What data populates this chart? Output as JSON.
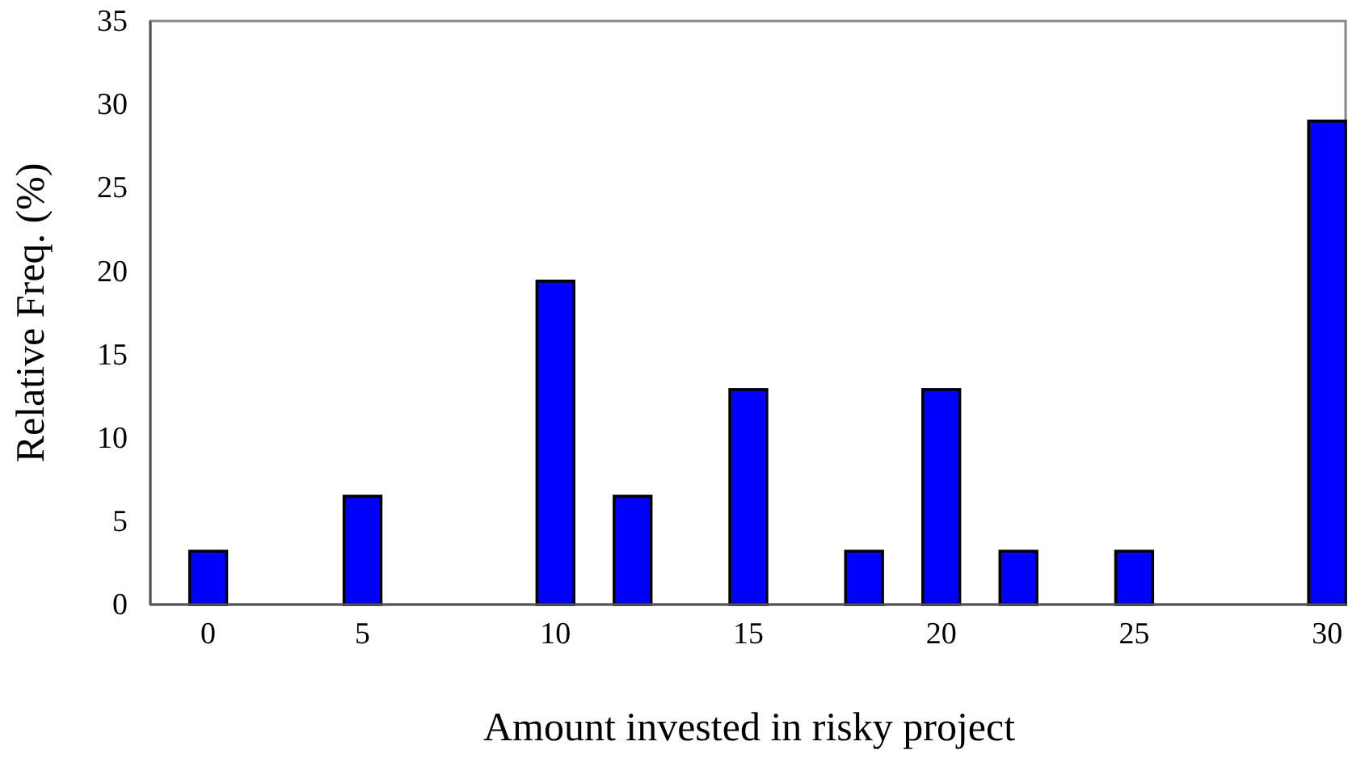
{
  "chart_data": {
    "type": "bar",
    "xlabel": "Amount invested in risky project",
    "ylabel": "Relative Freq. (%)",
    "categories": [
      "0",
      null,
      null,
      null,
      "5",
      null,
      null,
      null,
      null,
      "10",
      null,
      null,
      null,
      null,
      "15",
      null,
      null,
      null,
      null,
      "20",
      null,
      null,
      null,
      null,
      "25",
      null,
      null,
      null,
      null,
      "30"
    ],
    "values": [
      3.2,
      null,
      null,
      null,
      6.5,
      null,
      null,
      null,
      null,
      19.4,
      null,
      6.5,
      null,
      null,
      12.9,
      null,
      null,
      3.2,
      null,
      12.9,
      null,
      3.2,
      null,
      null,
      3.2,
      null,
      null,
      null,
      null,
      29.0
    ],
    "color": "#0000ff",
    "ylim": [
      0,
      35
    ],
    "yticks": [
      0,
      5,
      10,
      15,
      20,
      25,
      30,
      35
    ],
    "grid": false
  }
}
